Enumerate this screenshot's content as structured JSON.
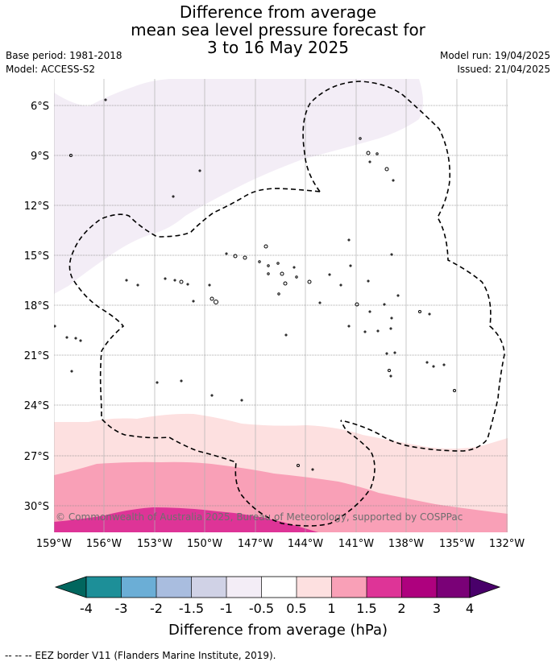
{
  "title": {
    "line1": "Difference from average",
    "line2": "mean sea level pressure forecast for",
    "line3": "3 to 16 May 2025"
  },
  "meta": {
    "base_period": "Base period: 1981-2018",
    "model": "Model: ACCESS-S2",
    "model_run": "Model run: 19/04/2025",
    "issued": "Issued: 21/04/2025"
  },
  "map": {
    "lat_labels": [
      "6°S",
      "9°S",
      "12°S",
      "15°S",
      "18°S",
      "21°S",
      "24°S",
      "27°S",
      "30°S"
    ],
    "lon_labels": [
      "159°W",
      "156°W",
      "153°W",
      "150°W",
      "147°W",
      "144°W",
      "141°W",
      "138°W",
      "135°W",
      "132°W"
    ],
    "copyright": "© Commonwealth of Australia 2025, Bureau of Meteorology, supported by COSPPac",
    "fill_colors": {
      "light_purple": "#f3edf6",
      "light_pink": "#fde0e0",
      "pink": "#f9a0b7",
      "magenta": "#de3497"
    }
  },
  "colorbar": {
    "label": "Difference from average (hPa)",
    "ticks": [
      "-4",
      "-3",
      "-2",
      "-1.5",
      "-1",
      "-0.5",
      "0.5",
      "1",
      "1.5",
      "2",
      "3",
      "4"
    ],
    "colors": [
      "#01665e",
      "#1d8f98",
      "#6baed6",
      "#a9bddf",
      "#d0d2e6",
      "#f3edf6",
      "#ffffff",
      "#fde0e0",
      "#f9a0b7",
      "#de3497",
      "#ae017e",
      "#7a0177",
      "#49006a"
    ]
  },
  "footer": {
    "legend": "--  --  -- EEZ border V11 (Flanders Marine Institute, 2019)."
  }
}
